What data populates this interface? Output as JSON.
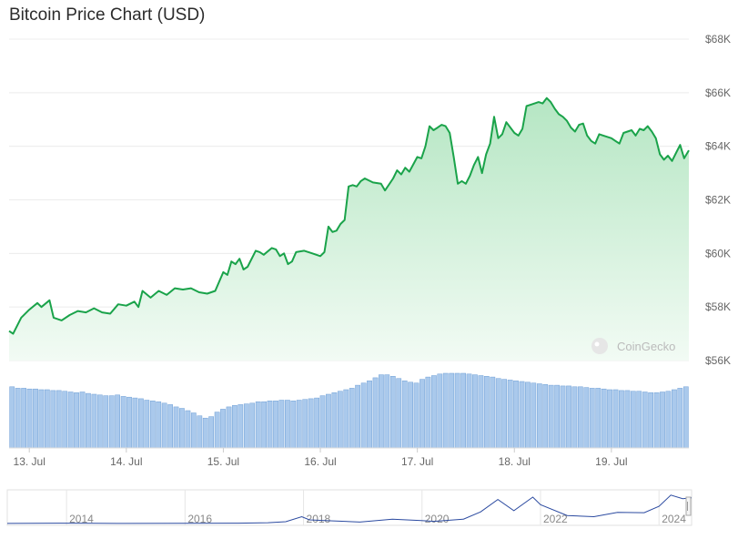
{
  "title": "Bitcoin Price Chart (USD)",
  "watermark": "CoinGecko",
  "colors": {
    "line": "#1aa34a",
    "fill_top": "#b5e6c3",
    "fill_bottom": "#f2fbf4",
    "volume": "#8db7e6",
    "navigator": "#2b4aa0"
  },
  "chart_data": {
    "type": "line",
    "title": "Bitcoin Price Chart (USD)",
    "y_ticks": [
      "$56K",
      "$58K",
      "$60K",
      "$62K",
      "$64K",
      "$66K",
      "$68K"
    ],
    "ylim": [
      56000,
      68000
    ],
    "x_ticks": [
      "13. Jul",
      "14. Jul",
      "15. Jul",
      "16. Jul",
      "17. Jul",
      "18. Jul",
      "19. Jul"
    ],
    "x_range": [
      "12 Jul 19:00",
      "19 Jul 19:10"
    ],
    "price": [
      [
        "12 Jul 19:00",
        57100
      ],
      [
        "12 Jul 20:00",
        57000
      ],
      [
        "12 Jul 22:00",
        57600
      ],
      [
        "13 Jul 00:00",
        57900
      ],
      [
        "13 Jul 02:00",
        58150
      ],
      [
        "13 Jul 03:00",
        58000
      ],
      [
        "13 Jul 05:00",
        58250
      ],
      [
        "13 Jul 06:00",
        57600
      ],
      [
        "13 Jul 08:00",
        57500
      ],
      [
        "13 Jul 10:00",
        57700
      ],
      [
        "13 Jul 12:00",
        57850
      ],
      [
        "13 Jul 14:00",
        57800
      ],
      [
        "13 Jul 16:00",
        57950
      ],
      [
        "13 Jul 18:00",
        57800
      ],
      [
        "13 Jul 20:00",
        57750
      ],
      [
        "13 Jul 22:00",
        58100
      ],
      [
        "14 Jul 00:00",
        58050
      ],
      [
        "14 Jul 02:00",
        58200
      ],
      [
        "14 Jul 03:00",
        58000
      ],
      [
        "14 Jul 04:00",
        58600
      ],
      [
        "14 Jul 06:00",
        58350
      ],
      [
        "14 Jul 08:00",
        58600
      ],
      [
        "14 Jul 10:00",
        58450
      ],
      [
        "14 Jul 12:00",
        58700
      ],
      [
        "14 Jul 14:00",
        58650
      ],
      [
        "14 Jul 16:00",
        58700
      ],
      [
        "14 Jul 18:00",
        58550
      ],
      [
        "14 Jul 20:00",
        58500
      ],
      [
        "14 Jul 22:00",
        58600
      ],
      [
        "15 Jul 00:00",
        59300
      ],
      [
        "15 Jul 01:00",
        59200
      ],
      [
        "15 Jul 02:00",
        59700
      ],
      [
        "15 Jul 03:00",
        59600
      ],
      [
        "15 Jul 04:00",
        59800
      ],
      [
        "15 Jul 05:00",
        59400
      ],
      [
        "15 Jul 06:00",
        59500
      ],
      [
        "15 Jul 08:00",
        60100
      ],
      [
        "15 Jul 09:00",
        60050
      ],
      [
        "15 Jul 10:00",
        59950
      ],
      [
        "15 Jul 12:00",
        60200
      ],
      [
        "15 Jul 13:00",
        60150
      ],
      [
        "15 Jul 14:00",
        59900
      ],
      [
        "15 Jul 15:00",
        60000
      ],
      [
        "15 Jul 16:00",
        59600
      ],
      [
        "15 Jul 17:00",
        59700
      ],
      [
        "15 Jul 18:00",
        60050
      ],
      [
        "15 Jul 20:00",
        60100
      ],
      [
        "15 Jul 22:00",
        60000
      ],
      [
        "16 Jul 00:00",
        59900
      ],
      [
        "16 Jul 01:00",
        60050
      ],
      [
        "16 Jul 02:00",
        61000
      ],
      [
        "16 Jul 03:00",
        60800
      ],
      [
        "16 Jul 04:00",
        60850
      ],
      [
        "16 Jul 05:00",
        61100
      ],
      [
        "16 Jul 06:00",
        61250
      ],
      [
        "16 Jul 07:00",
        62500
      ],
      [
        "16 Jul 08:00",
        62550
      ],
      [
        "16 Jul 09:00",
        62500
      ],
      [
        "16 Jul 10:00",
        62700
      ],
      [
        "16 Jul 11:00",
        62800
      ],
      [
        "16 Jul 13:00",
        62650
      ],
      [
        "16 Jul 15:00",
        62600
      ],
      [
        "16 Jul 16:00",
        62350
      ],
      [
        "16 Jul 18:00",
        62800
      ],
      [
        "16 Jul 19:00",
        63100
      ],
      [
        "16 Jul 20:00",
        62950
      ],
      [
        "16 Jul 21:00",
        63200
      ],
      [
        "16 Jul 22:00",
        63050
      ],
      [
        "17 Jul 00:00",
        63600
      ],
      [
        "17 Jul 01:00",
        63550
      ],
      [
        "17 Jul 02:00",
        64000
      ],
      [
        "17 Jul 03:00",
        64750
      ],
      [
        "17 Jul 04:00",
        64600
      ],
      [
        "17 Jul 05:00",
        64700
      ],
      [
        "17 Jul 06:00",
        64800
      ],
      [
        "17 Jul 07:00",
        64750
      ],
      [
        "17 Jul 08:00",
        64500
      ],
      [
        "17 Jul 09:00",
        63600
      ],
      [
        "17 Jul 10:00",
        62600
      ],
      [
        "17 Jul 11:00",
        62700
      ],
      [
        "17 Jul 12:00",
        62600
      ],
      [
        "17 Jul 13:00",
        62900
      ],
      [
        "17 Jul 14:00",
        63300
      ],
      [
        "17 Jul 15:00",
        63600
      ],
      [
        "17 Jul 16:00",
        63000
      ],
      [
        "17 Jul 17:00",
        63700
      ],
      [
        "17 Jul 18:00",
        64100
      ],
      [
        "17 Jul 19:00",
        65100
      ],
      [
        "17 Jul 20:00",
        64300
      ],
      [
        "17 Jul 21:00",
        64450
      ],
      [
        "17 Jul 22:00",
        64900
      ],
      [
        "18 Jul 00:00",
        64500
      ],
      [
        "18 Jul 01:00",
        64400
      ],
      [
        "18 Jul 02:00",
        64650
      ],
      [
        "18 Jul 03:00",
        65500
      ],
      [
        "18 Jul 04:00",
        65550
      ],
      [
        "18 Jul 05:00",
        65600
      ],
      [
        "18 Jul 06:00",
        65650
      ],
      [
        "18 Jul 07:00",
        65600
      ],
      [
        "18 Jul 08:00",
        65800
      ],
      [
        "18 Jul 09:00",
        65650
      ],
      [
        "18 Jul 10:00",
        65400
      ],
      [
        "18 Jul 11:00",
        65200
      ],
      [
        "18 Jul 12:00",
        65100
      ],
      [
        "18 Jul 13:00",
        64950
      ],
      [
        "18 Jul 14:00",
        64700
      ],
      [
        "18 Jul 15:00",
        64550
      ],
      [
        "18 Jul 16:00",
        64800
      ],
      [
        "18 Jul 17:00",
        64850
      ],
      [
        "18 Jul 18:00",
        64400
      ],
      [
        "18 Jul 19:00",
        64200
      ],
      [
        "18 Jul 20:00",
        64100
      ],
      [
        "18 Jul 21:00",
        64450
      ],
      [
        "18 Jul 22:00",
        64400
      ],
      [
        "19 Jul 00:00",
        64300
      ],
      [
        "19 Jul 01:00",
        64200
      ],
      [
        "19 Jul 02:00",
        64100
      ],
      [
        "19 Jul 03:00",
        64500
      ],
      [
        "19 Jul 04:00",
        64550
      ],
      [
        "19 Jul 05:00",
        64600
      ],
      [
        "19 Jul 06:00",
        64400
      ],
      [
        "19 Jul 07:00",
        64650
      ],
      [
        "19 Jul 08:00",
        64600
      ],
      [
        "19 Jul 09:00",
        64750
      ],
      [
        "19 Jul 10:00",
        64550
      ],
      [
        "19 Jul 11:00",
        64300
      ],
      [
        "19 Jul 12:00",
        63700
      ],
      [
        "19 Jul 13:00",
        63500
      ],
      [
        "19 Jul 14:00",
        63650
      ],
      [
        "19 Jul 15:00",
        63450
      ],
      [
        "19 Jul 16:00",
        63750
      ],
      [
        "19 Jul 17:00",
        64050
      ],
      [
        "19 Jul 18:00",
        63550
      ],
      [
        "19 Jul 19:10",
        63850
      ]
    ],
    "volume_relative": [
      0.82,
      0.8,
      0.8,
      0.79,
      0.79,
      0.78,
      0.78,
      0.77,
      0.77,
      0.76,
      0.75,
      0.74,
      0.75,
      0.73,
      0.72,
      0.71,
      0.7,
      0.7,
      0.71,
      0.69,
      0.68,
      0.67,
      0.66,
      0.64,
      0.63,
      0.62,
      0.6,
      0.58,
      0.55,
      0.53,
      0.5,
      0.47,
      0.43,
      0.4,
      0.42,
      0.48,
      0.52,
      0.55,
      0.57,
      0.58,
      0.59,
      0.6,
      0.62,
      0.62,
      0.63,
      0.63,
      0.64,
      0.64,
      0.63,
      0.64,
      0.65,
      0.66,
      0.67,
      0.7,
      0.72,
      0.74,
      0.76,
      0.78,
      0.8,
      0.84,
      0.87,
      0.9,
      0.94,
      0.98,
      0.98,
      0.96,
      0.93,
      0.9,
      0.88,
      0.87,
      0.92,
      0.95,
      0.97,
      0.99,
      1.0,
      1.0,
      1.0,
      1.0,
      0.99,
      0.98,
      0.97,
      0.96,
      0.95,
      0.93,
      0.92,
      0.91,
      0.9,
      0.89,
      0.88,
      0.87,
      0.86,
      0.85,
      0.84,
      0.84,
      0.83,
      0.83,
      0.82,
      0.82,
      0.81,
      0.8,
      0.8,
      0.79,
      0.78,
      0.78,
      0.77,
      0.77,
      0.76,
      0.76,
      0.75,
      0.74,
      0.74,
      0.75,
      0.76,
      0.78,
      0.8,
      0.82
    ],
    "navigator": {
      "x_ticks": [
        "2014",
        "2016",
        "2018",
        "2020",
        "2022",
        "2024"
      ],
      "xlim": [
        2013.0,
        2024.55
      ],
      "points": [
        [
          2013.0,
          150
        ],
        [
          2013.9,
          900
        ],
        [
          2014.5,
          550
        ],
        [
          2015.0,
          300
        ],
        [
          2016.0,
          420
        ],
        [
          2016.9,
          950
        ],
        [
          2017.4,
          2000
        ],
        [
          2017.7,
          4500
        ],
        [
          2017.97,
          17000
        ],
        [
          2018.1,
          9000
        ],
        [
          2018.5,
          6500
        ],
        [
          2018.95,
          3700
        ],
        [
          2019.5,
          11000
        ],
        [
          2019.99,
          7200
        ],
        [
          2020.2,
          5500
        ],
        [
          2020.7,
          11000
        ],
        [
          2020.99,
          29000
        ],
        [
          2021.28,
          60000
        ],
        [
          2021.55,
          32000
        ],
        [
          2021.87,
          66000
        ],
        [
          2022.0,
          47000
        ],
        [
          2022.45,
          20000
        ],
        [
          2022.9,
          17000
        ],
        [
          2023.3,
          28000
        ],
        [
          2023.75,
          27000
        ],
        [
          2024.0,
          43000
        ],
        [
          2024.2,
          71000
        ],
        [
          2024.4,
          62000
        ],
        [
          2024.55,
          64000
        ]
      ]
    }
  }
}
